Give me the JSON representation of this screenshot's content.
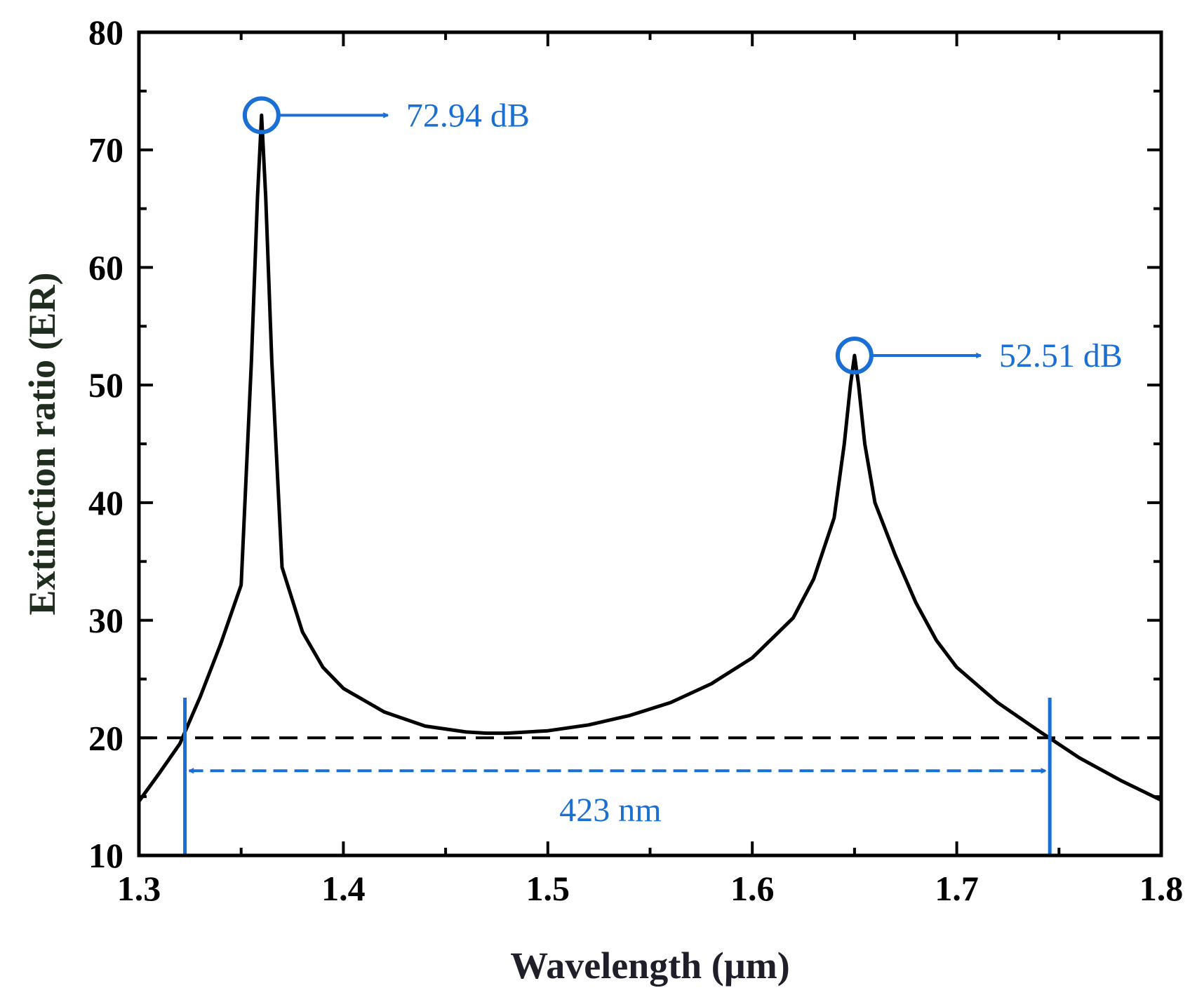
{
  "chart_data": {
    "type": "line",
    "title": "",
    "xlabel": "Wavelength (µm)",
    "ylabel": "Extinction ratio (ER)",
    "xlim": [
      1.3,
      1.8
    ],
    "ylim": [
      10,
      80
    ],
    "xticks": [
      1.3,
      1.4,
      1.5,
      1.6,
      1.7,
      1.8
    ],
    "xtick_labels": [
      "1.3",
      "1.4",
      "1.5",
      "1.6",
      "1.7",
      "1.8"
    ],
    "yticks": [
      10,
      20,
      30,
      40,
      50,
      60,
      70,
      80
    ],
    "ytick_labels": [
      "10",
      "20",
      "30",
      "40",
      "50",
      "60",
      "70",
      "80"
    ],
    "grid": false,
    "series": [
      {
        "name": "ER",
        "color": "#000000",
        "x": [
          1.3,
          1.31,
          1.32,
          1.33,
          1.34,
          1.35,
          1.355,
          1.358,
          1.36,
          1.362,
          1.365,
          1.37,
          1.38,
          1.39,
          1.4,
          1.42,
          1.44,
          1.46,
          1.47,
          1.48,
          1.5,
          1.52,
          1.54,
          1.56,
          1.58,
          1.6,
          1.62,
          1.63,
          1.64,
          1.645,
          1.648,
          1.65,
          1.652,
          1.655,
          1.66,
          1.67,
          1.68,
          1.69,
          1.7,
          1.72,
          1.74,
          1.76,
          1.78,
          1.8
        ],
        "y": [
          14.6,
          17.0,
          19.5,
          23.5,
          28.0,
          33.0,
          52.0,
          66.0,
          72.94,
          66.0,
          52.0,
          34.5,
          29.0,
          26.0,
          24.2,
          22.2,
          21.0,
          20.5,
          20.4,
          20.4,
          20.6,
          21.1,
          21.9,
          23.0,
          24.6,
          26.8,
          30.2,
          33.5,
          38.7,
          45.0,
          50.0,
          52.51,
          50.0,
          45.0,
          40.0,
          35.5,
          31.5,
          28.3,
          26.0,
          23.0,
          20.6,
          18.3,
          16.4,
          14.7
        ]
      }
    ],
    "threshold": {
      "y": 20,
      "style": "dashed",
      "color": "#000000"
    },
    "bandwidth": {
      "x_start": 1.3225,
      "x_end": 1.7455,
      "y": 17.2,
      "label": "423 nm",
      "color": "#1a6fd4"
    },
    "annotations": [
      {
        "x": 1.36,
        "y": 72.94,
        "label": "72.94 dB",
        "color": "#1a6fd4"
      },
      {
        "x": 1.65,
        "y": 52.51,
        "label": "52.51 dB",
        "color": "#1a6fd4"
      }
    ],
    "colors": {
      "ylabel": "#1f2d1f",
      "xlabel": "#1f1f2a",
      "annotation": "#1a6fd4"
    }
  }
}
